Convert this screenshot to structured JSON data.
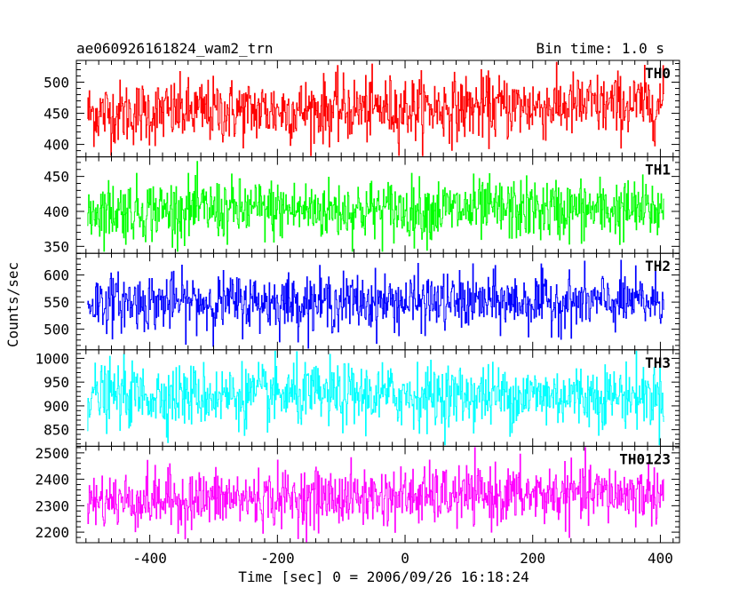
{
  "chart_data": {
    "type": "line",
    "title": "ae060926161824_wam2_trn",
    "subtitle": "Bin time: 1.0 s",
    "xlabel": "Time [sec] 0 = 2006/09/26 16:18:24",
    "ylabel": "Counts/sec",
    "xlim": [
      -515,
      430
    ],
    "xticks": [
      -400,
      -200,
      0,
      200,
      400
    ],
    "x_start": -498,
    "x_end": 405,
    "bin": 1.0,
    "panels": [
      {
        "name": "TH0",
        "color": "#ff0000",
        "ylim": [
          380,
          535
        ],
        "yticks": [
          400,
          450,
          500
        ],
        "mean": 450,
        "sigma": 26,
        "trend": 14,
        "min": 382,
        "max": 532
      },
      {
        "name": "TH1",
        "color": "#00ff00",
        "ylim": [
          340,
          478
        ],
        "yticks": [
          350,
          400,
          450
        ],
        "mean": 402,
        "sigma": 22,
        "trend": 0,
        "min": 343,
        "max": 475
      },
      {
        "name": "TH2",
        "color": "#0000ff",
        "ylim": [
          462,
          640
        ],
        "yticks": [
          500,
          550,
          600
        ],
        "mean": 550,
        "sigma": 26,
        "trend": 0,
        "min": 465,
        "max": 636
      },
      {
        "name": "TH3",
        "color": "#00ffff",
        "ylim": [
          815,
          1018
        ],
        "yticks": [
          850,
          900,
          950,
          1000
        ],
        "mean": 922,
        "sigma": 33,
        "trend": 0,
        "min": 818,
        "max": 1015
      },
      {
        "name": "TH0123",
        "color": "#ff00ff",
        "ylim": [
          2160,
          2525
        ],
        "yticks": [
          2200,
          2300,
          2400,
          2500
        ],
        "mean": 2318,
        "sigma": 55,
        "trend": 30,
        "min": 2162,
        "max": 2520
      }
    ]
  }
}
